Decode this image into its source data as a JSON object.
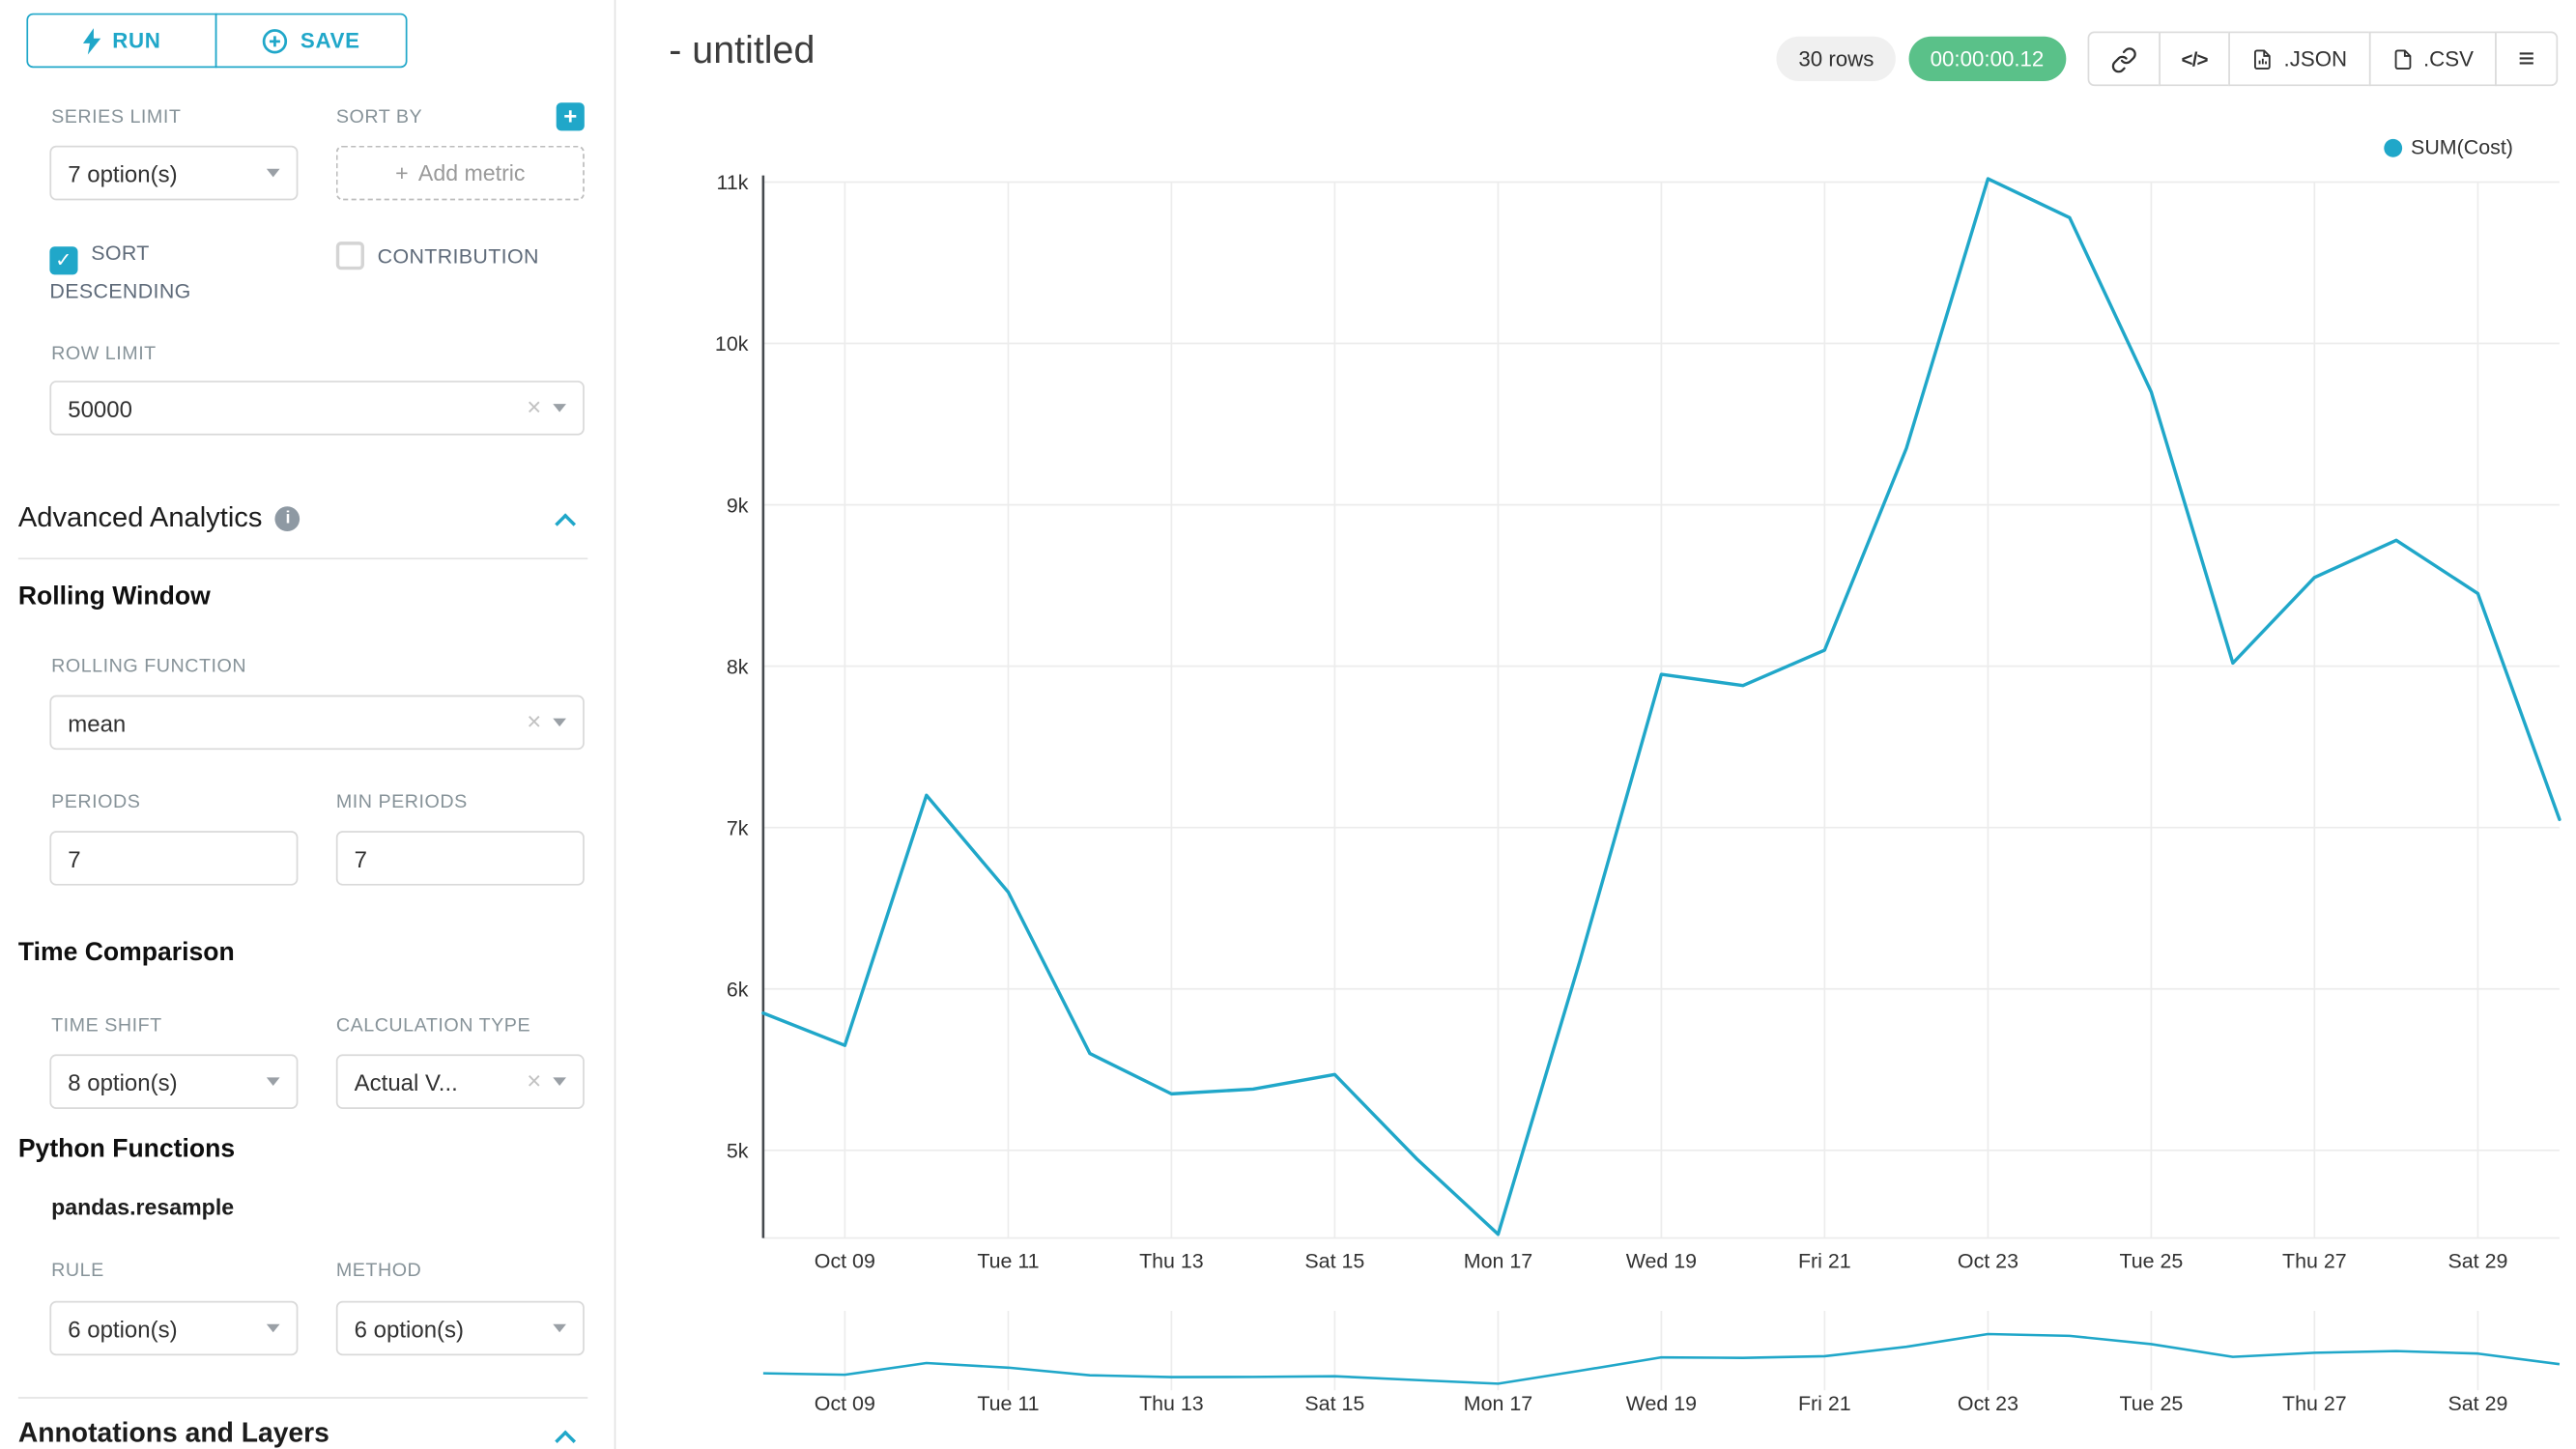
{
  "colors": {
    "accent": "#20a7c9",
    "success": "#5ac189",
    "grid": "#ececec",
    "axis": "#45494e"
  },
  "icons": {
    "plus": "+",
    "clear": "×",
    "check": "✓",
    "menu": "≡",
    "code": "</>",
    "info": "i"
  },
  "sidebar": {
    "run_button": "RUN",
    "save_button": "SAVE",
    "series_limit": {
      "label": "SERIES LIMIT",
      "value": "7 option(s)"
    },
    "sort_by": {
      "label": "SORT BY",
      "placeholder": "Add metric"
    },
    "sort_descending": {
      "label": "SORT DESCENDING",
      "checked": true
    },
    "contribution": {
      "label": "CONTRIBUTION",
      "checked": false
    },
    "row_limit": {
      "label": "ROW LIMIT",
      "value": "50000"
    },
    "advanced_analytics_title": "Advanced Analytics",
    "rolling_window_title": "Rolling Window",
    "rolling_function": {
      "label": "ROLLING FUNCTION",
      "value": "mean"
    },
    "periods": {
      "label": "PERIODS",
      "value": "7"
    },
    "min_periods": {
      "label": "MIN PERIODS",
      "value": "7"
    },
    "time_comparison_title": "Time Comparison",
    "time_shift": {
      "label": "TIME SHIFT",
      "value": "8 option(s)"
    },
    "calculation_type": {
      "label": "CALCULATION TYPE",
      "value": "Actual V..."
    },
    "python_functions_title": "Python Functions",
    "pandas_resample": "pandas.resample",
    "rule": {
      "label": "RULE",
      "value": "6 option(s)"
    },
    "method": {
      "label": "METHOD",
      "value": "6 option(s)"
    },
    "annotations_title": "Annotations and Layers"
  },
  "header": {
    "title": "- untitled",
    "rows_badge": "30 rows",
    "timer_badge": "00:00:00.12",
    "json_button": ".JSON",
    "csv_button": ".CSV"
  },
  "chart_data": {
    "type": "line",
    "title": "",
    "legend": [
      "SUM(Cost)"
    ],
    "legend_position": "top-right",
    "grid": true,
    "x": [
      "Oct 08",
      "Oct 09",
      "Oct 10",
      "Oct 11",
      "Oct 12",
      "Oct 13",
      "Oct 14",
      "Oct 15",
      "Oct 16",
      "Oct 17",
      "Oct 18",
      "Oct 19",
      "Oct 20",
      "Oct 21",
      "Oct 22",
      "Oct 23",
      "Oct 24",
      "Oct 25",
      "Oct 26",
      "Oct 27",
      "Oct 28",
      "Oct 29",
      "Oct 30"
    ],
    "series": [
      {
        "name": "SUM(Cost)",
        "color": "#20a7c9",
        "values": [
          5850,
          5650,
          7200,
          6600,
          5600,
          5350,
          5380,
          5470,
          4950,
          4480,
          6170,
          7950,
          7880,
          8100,
          9350,
          11020,
          10780,
          9700,
          8020,
          8550,
          8780,
          8450,
          7050
        ]
      }
    ],
    "x_tick_labels": [
      "Oct 09",
      "Tue 11",
      "Thu 13",
      "Sat 15",
      "Mon 17",
      "Wed 19",
      "Fri 21",
      "Oct 23",
      "Tue 25",
      "Thu 27",
      "Sat 29"
    ],
    "x_tick_indices": [
      1,
      3,
      5,
      7,
      9,
      11,
      13,
      15,
      17,
      19,
      21
    ],
    "y_ticks": [
      5000,
      6000,
      7000,
      8000,
      9000,
      10000,
      11000
    ],
    "y_tick_labels": [
      "5k",
      "6k",
      "7k",
      "8k",
      "9k",
      "10k",
      "11k"
    ],
    "ylim": [
      4350,
      11250
    ],
    "has_mini_chart": true
  }
}
